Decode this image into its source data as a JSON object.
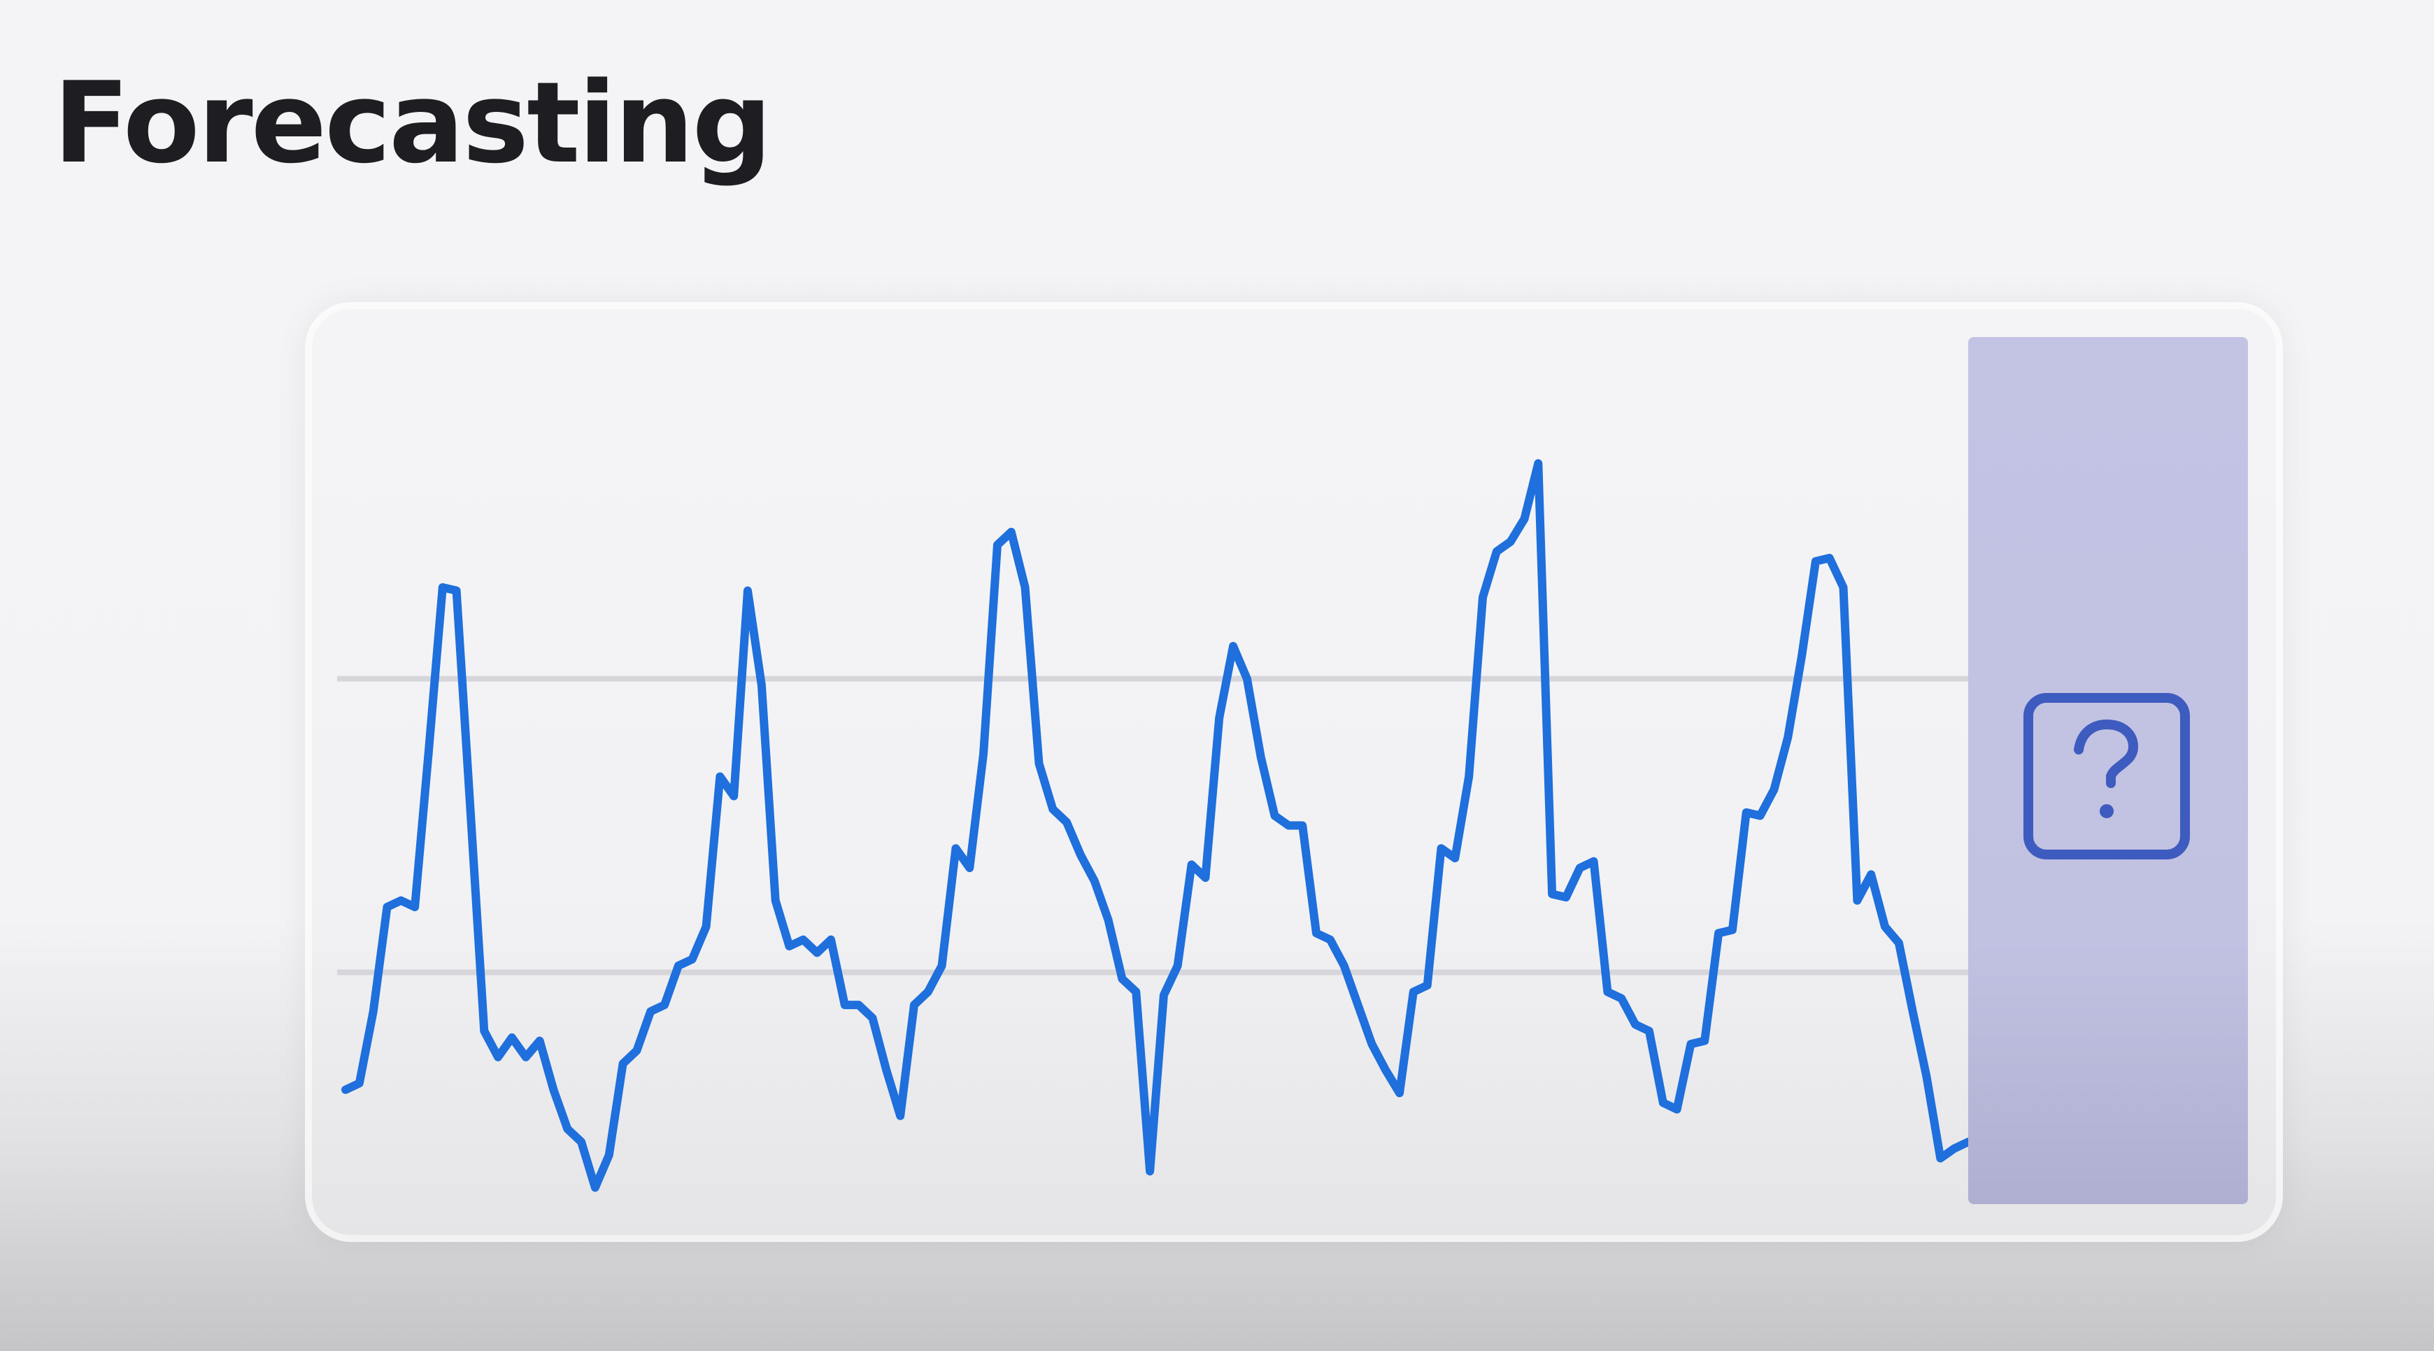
{
  "page": {
    "title": "Forecasting"
  },
  "colors": {
    "line": "#1f6fdc",
    "gridline": "#d6d6da",
    "forecast_panel": "#c1c1e2",
    "question_icon": "#3e5bbf"
  },
  "forecast": {
    "icon": "question-square-icon"
  },
  "chart_data": {
    "type": "line",
    "title": "",
    "xlabel": "",
    "ylabel": "",
    "grid": "horizontal",
    "legend": "none",
    "ylim": [
      0,
      100
    ],
    "gridlines_y": [
      35,
      80
    ],
    "series": [
      {
        "values": [
          17,
          18,
          29,
          45,
          46,
          45,
          69,
          94,
          93.5,
          60,
          26,
          22,
          25,
          22,
          24.5,
          17,
          11,
          9,
          2,
          7,
          21,
          23,
          29,
          30,
          36,
          37,
          42,
          65,
          62,
          93.5,
          79,
          46,
          39,
          40,
          38,
          40,
          30,
          30,
          28,
          20,
          13,
          30,
          32,
          36,
          54,
          51,
          68.5,
          100.5,
          102.5,
          94,
          67,
          60,
          58,
          53,
          49,
          43,
          34,
          32,
          4.5,
          31.5,
          36,
          51.5,
          49.5,
          74,
          85,
          80,
          68,
          59,
          57.5,
          57.5,
          41,
          40,
          36,
          30,
          24,
          20,
          16.5,
          32,
          33,
          54,
          52.5,
          65,
          92.5,
          99.5,
          101,
          104.5,
          113,
          47,
          46.5,
          51,
          52,
          32,
          31,
          27,
          26,
          15,
          14,
          24,
          24.5,
          41,
          41.5,
          59.5,
          59,
          63,
          71,
          83.5,
          98,
          98.5,
          94,
          46,
          50,
          42,
          39.5,
          29,
          19,
          6.5,
          8,
          9
        ]
      }
    ]
  }
}
